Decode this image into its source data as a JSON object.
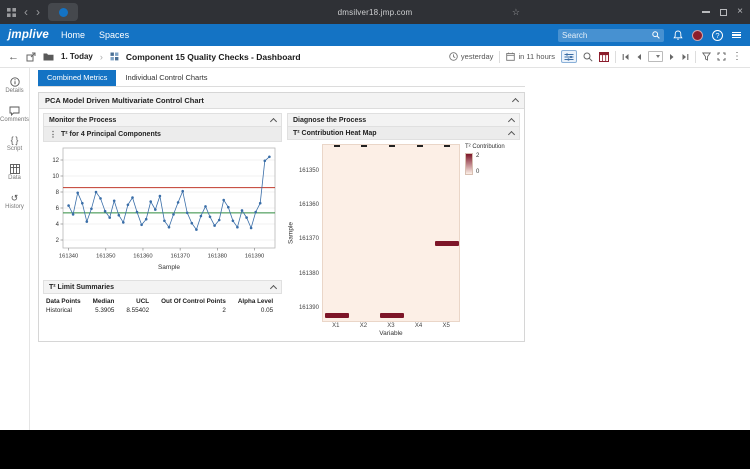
{
  "browser": {
    "url": "dmsilver18.jmp.com"
  },
  "header": {
    "logo": "jmplive",
    "nav": [
      {
        "label": "Home"
      },
      {
        "label": "Spaces"
      }
    ],
    "search_placeholder": "Search"
  },
  "toolbar": {
    "space": "1. Today",
    "title": "Component 15 Quality Checks - Dashboard",
    "updated": "yesterday",
    "expires": "in 11 hours"
  },
  "sidebar": {
    "items": [
      {
        "label": "Details",
        "icon": "info-icon"
      },
      {
        "label": "Comments",
        "icon": "comment-icon"
      },
      {
        "label": "Script",
        "icon": "script-icon"
      },
      {
        "label": "Data",
        "icon": "data-table-icon"
      },
      {
        "label": "History",
        "icon": "history-icon"
      }
    ]
  },
  "tabs": [
    {
      "label": "Combined Metrics",
      "active": true
    },
    {
      "label": "Individual Control Charts",
      "active": false
    }
  ],
  "panel": {
    "title": "PCA Model Driven Multivariate Control Chart"
  },
  "monitor": {
    "title": "Monitor the Process",
    "chart_title": "T² for 4 Principal Components",
    "limit_title": "T² Limit Summaries",
    "table": {
      "headers": [
        "Data Points",
        "Median",
        "UCL",
        "Out Of Control Points",
        "Alpha Level"
      ],
      "rows": [
        [
          "Historical",
          "5.3905",
          "8.55402",
          "2",
          "0.05"
        ]
      ]
    }
  },
  "diagnose": {
    "title": "Diagnose the Process",
    "heatmap_title": "T² Contribution Heat Map",
    "legend": {
      "title": "T² Contribution",
      "max_label": "2",
      "min_label": "0"
    }
  },
  "colors": {
    "brand_blue": "#1473c4",
    "avatar_red": "#8c1d2c",
    "heatmap_bg": "#fcefe6",
    "heatmap_cell": "#7d1528"
  },
  "chart_data": [
    {
      "type": "line",
      "title": "T² for 4 Principal Components",
      "xlabel": "Sample",
      "ylabel": "",
      "x_ticks": [
        161340,
        161350,
        161360,
        161370,
        161380,
        161390
      ],
      "x_domain": [
        161338.5,
        161395.5
      ],
      "y_ticks": [
        2,
        4,
        6,
        8,
        10,
        12
      ],
      "y_domain": [
        1,
        13.5
      ],
      "ucl": 8.55402,
      "median": 5.3905,
      "ucl_color": "#c0392b",
      "median_color": "#2e8b3d",
      "series_color": "#3a6ea8",
      "x_start": 161340,
      "x_step": 1.227,
      "values": [
        6.3,
        5.2,
        7.9,
        6.6,
        4.3,
        5.9,
        8.0,
        7.2,
        5.6,
        4.8,
        6.9,
        5.1,
        4.2,
        6.4,
        7.3,
        5.5,
        3.9,
        4.6,
        6.8,
        5.8,
        7.5,
        4.4,
        3.6,
        5.2,
        6.7,
        8.1,
        5.4,
        4.1,
        3.3,
        5.0,
        6.2,
        4.9,
        3.8,
        4.5,
        7.0,
        6.1,
        4.4,
        3.6,
        5.7,
        4.8,
        3.5,
        5.5,
        6.6,
        11.9,
        12.4
      ],
      "grid": true,
      "legend_position": "none"
    },
    {
      "type": "heatmap",
      "title": "T² Contribution Heat Map",
      "xlabel": "Variable",
      "ylabel": "Sample",
      "x_categories": [
        "X1",
        "X2",
        "X3",
        "X4",
        "X5"
      ],
      "y_ticks": [
        161350,
        161360,
        161370,
        161380,
        161390
      ],
      "y_domain": [
        161342,
        161394
      ],
      "bg_color": "#fcefe6",
      "cell_color": "#7d1528",
      "cells": [
        {
          "sample": 161392,
          "variable": "X1",
          "value": 2.0
        },
        {
          "sample": 161392,
          "variable": "X3",
          "value": 1.8
        },
        {
          "sample": 161371,
          "variable": "X5",
          "value": 1.6
        }
      ],
      "legend": {
        "title": "T² Contribution",
        "max": 2,
        "min": 0
      }
    }
  ]
}
